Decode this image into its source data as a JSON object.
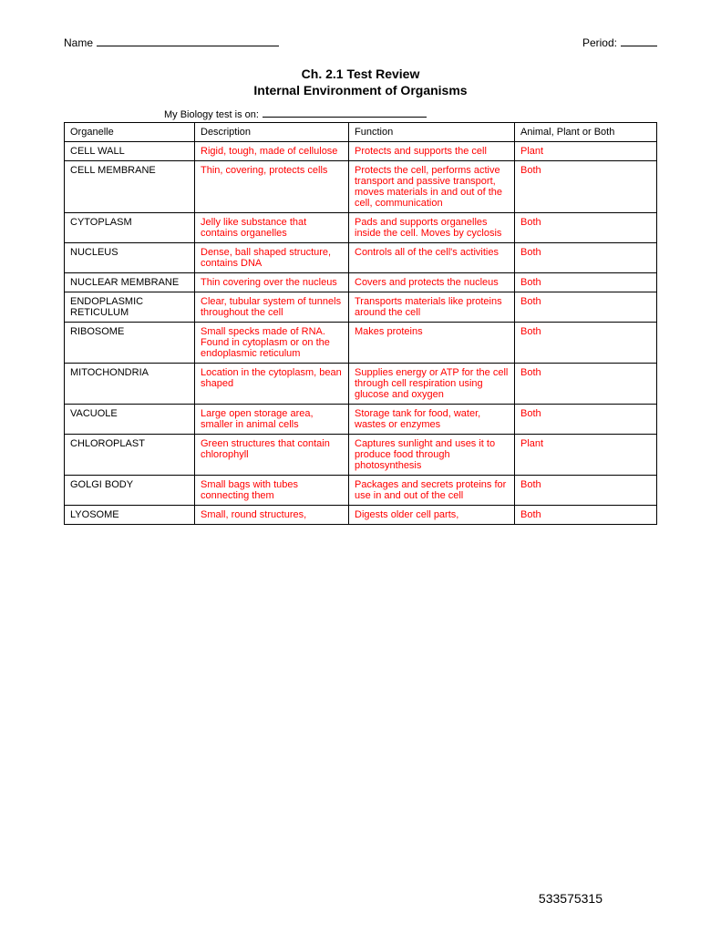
{
  "header": {
    "name_label": "Name",
    "period_label": "Period:"
  },
  "title": {
    "line1": "Ch. 2.1 Test Review",
    "line2": "Internal Environment of Organisms"
  },
  "test_date_label": "My Biology test is on:",
  "columns": {
    "organelle": "Organelle",
    "description": "Description",
    "function": "Function",
    "type": "Animal, Plant or Both"
  },
  "rows": [
    {
      "organelle": "CELL WALL",
      "description": "Rigid, tough, made of cellulose",
      "function": "Protects and supports the cell",
      "type": "Plant"
    },
    {
      "organelle": "CELL MEMBRANE",
      "description": "Thin, covering, protects cells",
      "function": "Protects the cell, performs active transport and passive transport, moves materials in and out of the cell, communication",
      "type": "Both"
    },
    {
      "organelle": "CYTOPLASM",
      "description": "Jelly like substance that contains organelles",
      "function": "Pads and supports organelles inside the cell. Moves by cyclosis",
      "type": "Both"
    },
    {
      "organelle": "NUCLEUS",
      "description": "Dense, ball shaped structure, contains DNA",
      "function": "Controls all of the cell's activities",
      "type": "Both"
    },
    {
      "organelle": "NUCLEAR MEMBRANE",
      "description": "Thin covering over the nucleus",
      "function": "Covers and protects the nucleus",
      "type": "Both"
    },
    {
      "organelle": "ENDOPLASMIC RETICULUM",
      "description": "Clear, tubular system of tunnels throughout the cell",
      "function": "Transports materials like proteins around the cell",
      "type": "Both"
    },
    {
      "organelle": "RIBOSOME",
      "description": "Small specks made of RNA. Found in cytoplasm or on the endoplasmic reticulum",
      "function": "Makes proteins",
      "type": "Both"
    },
    {
      "organelle": "MITOCHONDRIA",
      "description": "Location in the cytoplasm, bean shaped",
      "function": "Supplies energy or ATP for the cell through cell respiration using glucose and oxygen",
      "type": "Both"
    },
    {
      "organelle": "VACUOLE",
      "description": "Large open storage area, smaller in animal cells",
      "function": "Storage tank for food, water, wastes or enzymes",
      "type": "Both"
    },
    {
      "organelle": "CHLOROPLAST",
      "description": "Green structures that contain chlorophyll",
      "function": "Captures sunlight and uses it to produce food through photosynthesis",
      "type": "Plant"
    },
    {
      "organelle": "GOLGI BODY",
      "description": "Small bags with tubes connecting them",
      "function": "Packages and secrets proteins for use in and out of the cell",
      "type": "Both"
    },
    {
      "organelle": "LYOSOME",
      "description": "Small, round structures,",
      "function": "Digests older cell parts,",
      "type": "Both"
    }
  ],
  "footer_number": "533575315",
  "colors": {
    "answer_text": "#ff0000",
    "border": "#000000",
    "text": "#000000",
    "background": "#ffffff"
  }
}
